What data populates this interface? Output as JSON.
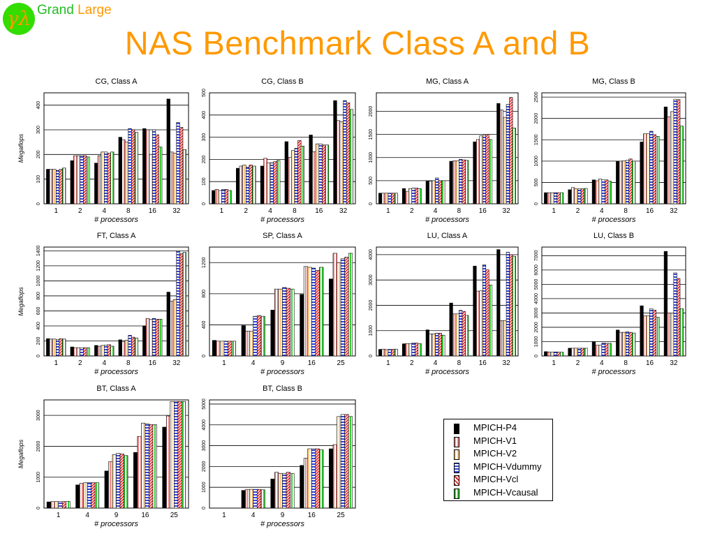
{
  "header": {
    "logo_text": "γλ",
    "brand_grand": "Grand",
    "brand_large": "Large",
    "title": "NAS Benchmark Class A and B"
  },
  "series_names": [
    "MPICH-P4",
    "MPICH-V1",
    "MPICH-V2",
    "MPICH-Vdummy",
    "MPICH-Vcl",
    "MPICH-Vcausal"
  ],
  "series_colors": [
    "#000000",
    "#ee8888",
    "#ffcc88",
    "#3344dd",
    "#ee2222",
    "#33cc33"
  ],
  "chart_data": [
    {
      "type": "bar",
      "title": "CG, Class A",
      "xlabel": "# processors",
      "ylabel": "Megaflops",
      "categories": [
        "1",
        "2",
        "4",
        "8",
        "16",
        "32"
      ],
      "ylim": [
        0,
        450
      ],
      "yticks": [
        0,
        100,
        200,
        300,
        400
      ],
      "values": [
        [
          140,
          140,
          140,
          135,
          140,
          145
        ],
        [
          175,
          195,
          195,
          195,
          195,
          190
        ],
        [
          165,
          195,
          210,
          210,
          205,
          210
        ],
        [
          270,
          260,
          250,
          305,
          300,
          290
        ],
        [
          305,
          300,
          200,
          300,
          280,
          230
        ],
        [
          425,
          210,
          205,
          330,
          310,
          220
        ]
      ]
    },
    {
      "type": "bar",
      "title": "CG, Class B",
      "xlabel": "# processors",
      "ylabel": "",
      "categories": [
        "1",
        "2",
        "4",
        "8",
        "16",
        "32"
      ],
      "ylim": [
        0,
        500
      ],
      "yticks": [
        0,
        100,
        200,
        300,
        400,
        500
      ],
      "values": [
        [
          60,
          65,
          60,
          65,
          65,
          60
        ],
        [
          160,
          170,
          175,
          165,
          175,
          170
        ],
        [
          170,
          205,
          185,
          185,
          190,
          195
        ],
        [
          280,
          210,
          240,
          250,
          285,
          260
        ],
        [
          310,
          235,
          270,
          270,
          265,
          265
        ],
        [
          465,
          375,
          370,
          465,
          455,
          425
        ]
      ]
    },
    {
      "type": "bar",
      "title": "MG, Class A",
      "xlabel": "# processors",
      "ylabel": "",
      "categories": [
        "1",
        "2",
        "4",
        "8",
        "16",
        "32"
      ],
      "ylim": [
        0,
        2400
      ],
      "yticks": [
        0,
        500,
        1000,
        1500,
        2000
      ],
      "values": [
        [
          230,
          230,
          230,
          230,
          230,
          230
        ],
        [
          330,
          270,
          330,
          340,
          340,
          330
        ],
        [
          490,
          490,
          500,
          560,
          500,
          500
        ],
        [
          920,
          930,
          930,
          960,
          950,
          940
        ],
        [
          1340,
          1390,
          1470,
          1480,
          1500,
          1390
        ],
        [
          2170,
          2030,
          1870,
          2150,
          2300,
          1640
        ]
      ]
    },
    {
      "type": "bar",
      "title": "MG, Class B",
      "xlabel": "# processors",
      "ylabel": "",
      "categories": [
        "1",
        "2",
        "4",
        "8",
        "16",
        "32"
      ],
      "ylim": [
        0,
        2600
      ],
      "yticks": [
        0,
        500,
        1000,
        1500,
        2000,
        2500
      ],
      "values": [
        [
          260,
          260,
          260,
          260,
          260,
          260
        ],
        [
          330,
          380,
          350,
          350,
          350,
          360
        ],
        [
          560,
          540,
          580,
          560,
          560,
          530
        ],
        [
          1000,
          1000,
          1010,
          1020,
          1050,
          1000
        ],
        [
          1450,
          1640,
          1640,
          1700,
          1620,
          1580
        ],
        [
          2270,
          2040,
          2160,
          2450,
          2440,
          1820
        ]
      ]
    },
    {
      "type": "bar",
      "title": "FT, Class A",
      "xlabel": "# processors",
      "ylabel": "Megaflops",
      "categories": [
        "1",
        "2",
        "4",
        "8",
        "16",
        "32"
      ],
      "ylim": [
        0,
        1450
      ],
      "yticks": [
        0,
        200,
        400,
        600,
        800,
        1000,
        1200,
        1400
      ],
      "values": [
        [
          230,
          225,
          225,
          220,
          230,
          225
        ],
        [
          120,
          110,
          110,
          110,
          110,
          110
        ],
        [
          140,
          130,
          140,
          145,
          150,
          130
        ],
        [
          215,
          195,
          210,
          275,
          250,
          240
        ],
        [
          400,
          500,
          490,
          500,
          490,
          490
        ],
        [
          850,
          730,
          750,
          1400,
          1360,
          1380
        ]
      ]
    },
    {
      "type": "bar",
      "title": "SP, Class A",
      "xlabel": "# processors",
      "ylabel": "",
      "categories": [
        "1",
        "4",
        "9",
        "16",
        "25"
      ],
      "ylim": [
        0,
        1400
      ],
      "yticks": [
        0,
        400,
        800,
        1200
      ],
      "values": [
        [
          200,
          190,
          190,
          190,
          190,
          190
        ],
        [
          390,
          320,
          320,
          510,
          520,
          510
        ],
        [
          590,
          860,
          860,
          880,
          870,
          860
        ],
        [
          790,
          1150,
          1140,
          1130,
          1100,
          1140
        ],
        [
          990,
          1320,
          1200,
          1250,
          1270,
          1320
        ]
      ]
    },
    {
      "type": "bar",
      "title": "LU, Class A",
      "xlabel": "# processors",
      "ylabel": "",
      "categories": [
        "1",
        "2",
        "4",
        "8",
        "16",
        "32"
      ],
      "ylim": [
        0,
        4300
      ],
      "yticks": [
        0,
        1000,
        2000,
        3000,
        4000
      ],
      "values": [
        [
          260,
          270,
          250,
          260,
          260,
          270
        ],
        [
          480,
          490,
          490,
          510,
          510,
          490
        ],
        [
          1030,
          870,
          870,
          900,
          900,
          820
        ],
        [
          2090,
          1660,
          1660,
          1800,
          1760,
          1600
        ],
        [
          3550,
          2560,
          2570,
          3600,
          3400,
          2800
        ],
        [
          4200,
          1400,
          1400,
          4100,
          4000,
          3940
        ]
      ]
    },
    {
      "type": "bar",
      "title": "LU, Class B",
      "xlabel": "# processors",
      "ylabel": "",
      "categories": [
        "1",
        "2",
        "4",
        "8",
        "16",
        "32"
      ],
      "ylim": [
        0,
        7600
      ],
      "yticks": [
        0,
        1000,
        2000,
        3000,
        4000,
        5000,
        6000,
        7000
      ],
      "values": [
        [
          300,
          280,
          260,
          280,
          270,
          260
        ],
        [
          540,
          540,
          540,
          540,
          540,
          540
        ],
        [
          1000,
          750,
          750,
          900,
          880,
          880
        ],
        [
          1810,
          1650,
          1650,
          1700,
          1650,
          1600
        ],
        [
          3500,
          2800,
          2800,
          3300,
          3200,
          2700
        ],
        [
          7300,
          3000,
          3000,
          5800,
          5400,
          3300
        ]
      ]
    },
    {
      "type": "bar",
      "title": "BT, Class A",
      "xlabel": "# processors",
      "ylabel": "Megaflops",
      "categories": [
        "1",
        "4",
        "9",
        "16",
        "25"
      ],
      "ylim": [
        0,
        3500
      ],
      "yticks": [
        0,
        1000,
        2000,
        3000
      ],
      "values": [
        [
          200,
          210,
          210,
          210,
          210,
          220
        ],
        [
          750,
          800,
          820,
          820,
          820,
          820
        ],
        [
          1200,
          1500,
          1730,
          1770,
          1750,
          1700
        ],
        [
          1800,
          2320,
          2750,
          2730,
          2700,
          2700
        ],
        [
          2620,
          2980,
          3450,
          3450,
          3450,
          3450
        ]
      ]
    },
    {
      "type": "bar",
      "title": "BT, Class B",
      "xlabel": "# processors",
      "ylabel": "",
      "categories": [
        "1",
        "4",
        "9",
        "16",
        "25"
      ],
      "ylim": [
        0,
        5200
      ],
      "yticks": [
        0,
        1000,
        2000,
        3000,
        4000,
        5000
      ],
      "values": [
        [
          0,
          0,
          0,
          0,
          0,
          0
        ],
        [
          850,
          900,
          900,
          900,
          900,
          880
        ],
        [
          1400,
          1720,
          1670,
          1670,
          1720,
          1660
        ],
        [
          2050,
          2400,
          2850,
          2850,
          2850,
          2800
        ],
        [
          2850,
          3050,
          4400,
          4500,
          4500,
          4400
        ]
      ]
    }
  ]
}
